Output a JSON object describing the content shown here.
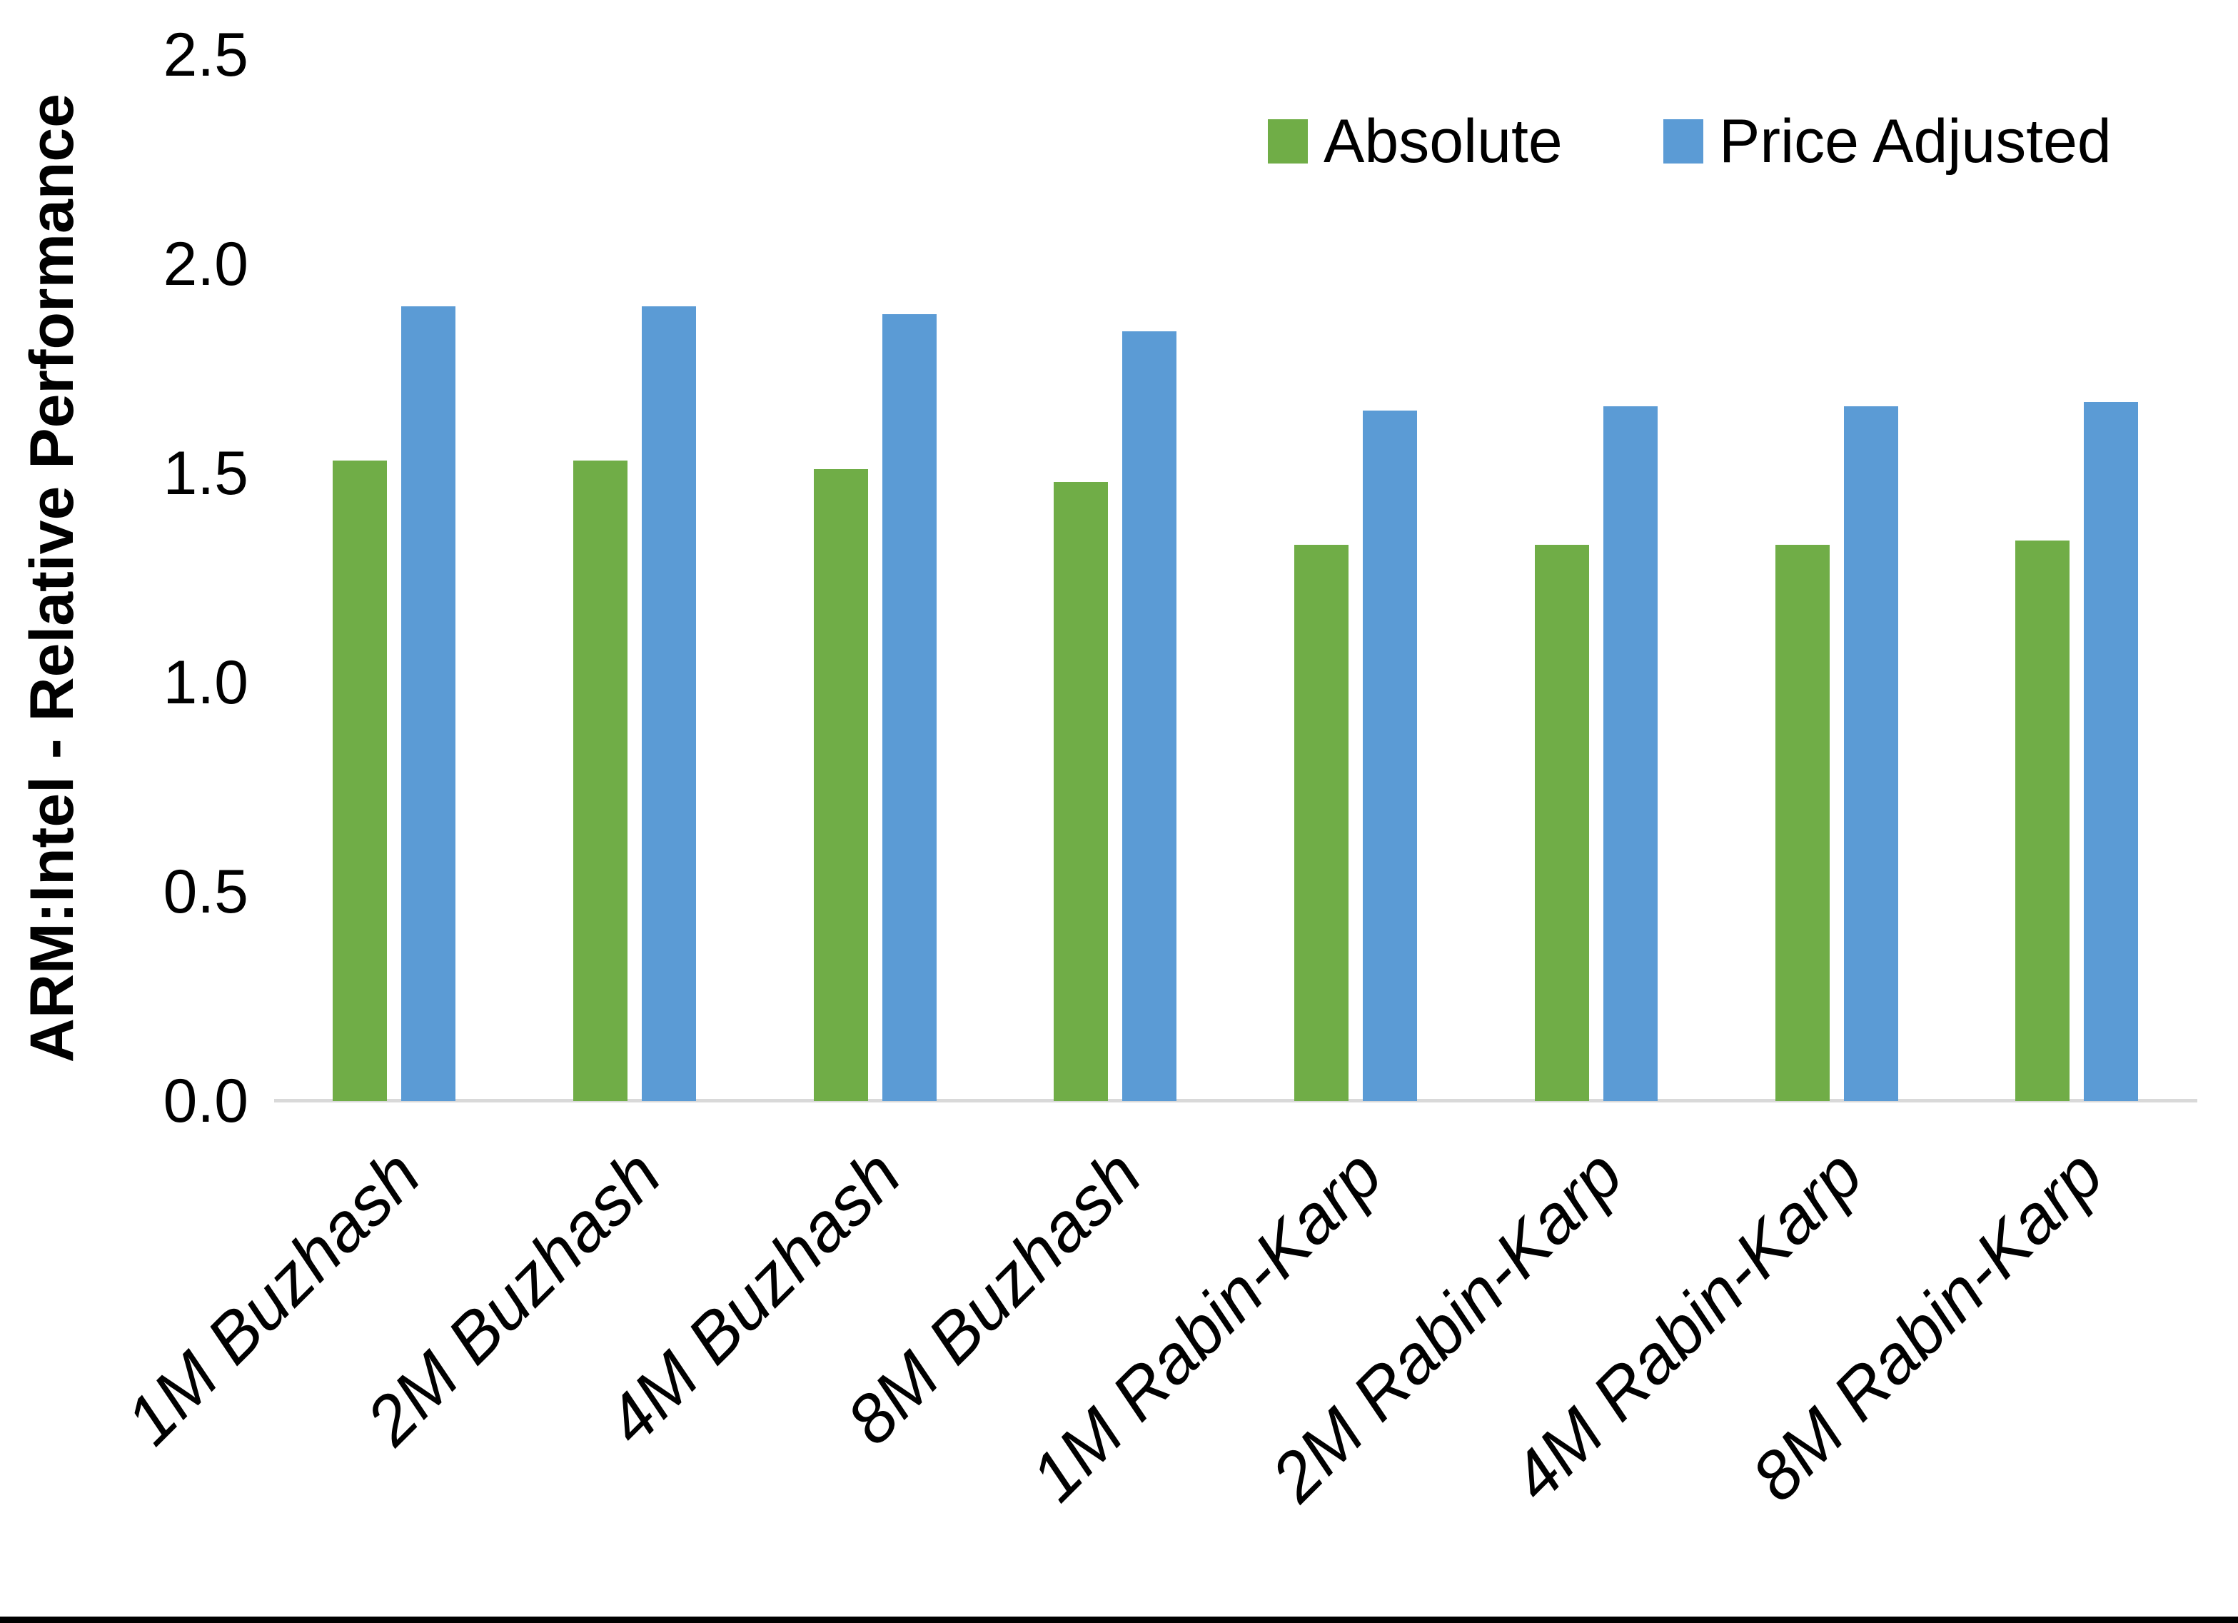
{
  "chart_data": {
    "type": "bar",
    "title": "",
    "xlabel": "",
    "ylabel": "ARM:Intel - Relative Performance",
    "ylim": [
      0,
      2.5
    ],
    "ytick_labels": [
      "0.0",
      "0.5",
      "1.0",
      "1.5",
      "2.0",
      "2.5"
    ],
    "grid": false,
    "legend_position": "top-right",
    "categories": [
      "1M Buzhash",
      "2M Buzhash",
      "4M Buzhash",
      "8M Buzhash",
      "1M Rabin-Karp",
      "2M Rabin-Karp",
      "4M Rabin-Karp",
      "8M Rabin-Karp"
    ],
    "series": [
      {
        "name": "Absolute",
        "color": "#70AD47",
        "values": [
          1.53,
          1.53,
          1.51,
          1.48,
          1.33,
          1.33,
          1.33,
          1.34
        ]
      },
      {
        "name": "Price Adjusted",
        "color": "#5B9BD5",
        "values": [
          1.9,
          1.9,
          1.88,
          1.84,
          1.65,
          1.66,
          1.66,
          1.67
        ]
      }
    ]
  },
  "legend": {
    "items": [
      {
        "label": "Absolute",
        "color": "#70AD47"
      },
      {
        "label": "Price Adjusted",
        "color": "#5B9BD5"
      }
    ]
  },
  "colors": {
    "axis_baseline": "#d9d9d9",
    "text": "#000000",
    "figure_bottom_border": "#000000",
    "background": "#ffffff"
  }
}
